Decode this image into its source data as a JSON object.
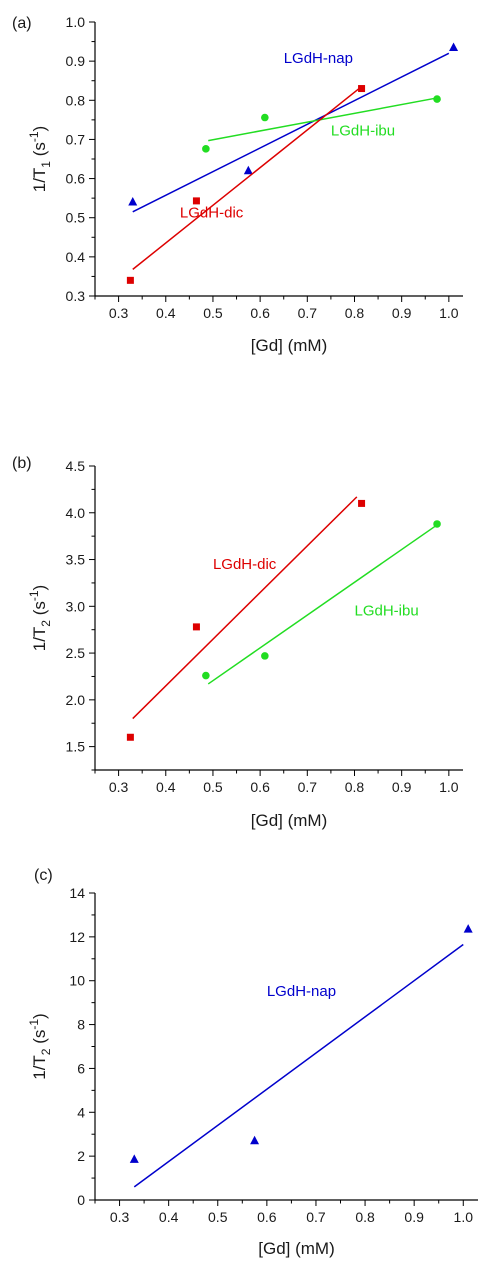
{
  "chart_data": [
    {
      "type": "scatter",
      "panel_label": "(a)",
      "xlabel": "[Gd] (mM)",
      "ylabel": {
        "base": "1/T",
        "sub": "1",
        "unit_open": " (s",
        "sup": "-1",
        "unit_close": ")"
      },
      "xlim": [
        0.25,
        1.03
      ],
      "ylim": [
        0.3,
        1.0
      ],
      "xticks": [
        "0.3",
        "0.4",
        "0.5",
        "0.6",
        "0.7",
        "0.8",
        "0.9",
        "1.0"
      ],
      "yticks": [
        "0.3",
        "0.4",
        "0.5",
        "0.6",
        "0.7",
        "0.8",
        "0.9",
        "1.0"
      ],
      "series": [
        {
          "name": "LGdH-nap",
          "color": "#0000cc",
          "marker": "triangle",
          "points": [
            [
              0.33,
              0.54
            ],
            [
              0.575,
              0.62
            ],
            [
              1.01,
              0.935
            ]
          ],
          "fit": [
            [
              0.33,
              0.515
            ],
            [
              1.0,
              0.92
            ]
          ],
          "label_at": [
            0.65,
            0.895
          ]
        },
        {
          "name": "LGdH-ibu",
          "color": "#22dd22",
          "marker": "circle",
          "points": [
            [
              0.485,
              0.676
            ],
            [
              0.61,
              0.756
            ],
            [
              0.975,
              0.803
            ]
          ],
          "fit": [
            [
              0.49,
              0.697
            ],
            [
              0.975,
              0.806
            ]
          ],
          "label_at": [
            0.75,
            0.71
          ]
        },
        {
          "name": "LGdH-dic",
          "color": "#dd0000",
          "marker": "square",
          "points": [
            [
              0.325,
              0.34
            ],
            [
              0.465,
              0.543
            ],
            [
              0.815,
              0.83
            ]
          ],
          "fit": [
            [
              0.33,
              0.368
            ],
            [
              0.815,
              0.835
            ]
          ],
          "label_at": [
            0.43,
            0.5
          ]
        }
      ]
    },
    {
      "type": "scatter",
      "panel_label": "(b)",
      "xlabel": "[Gd] (mM)",
      "ylabel": {
        "base": "1/T",
        "sub": "2",
        "unit_open": " (s",
        "sup": "-1",
        "unit_close": ")"
      },
      "xlim": [
        0.25,
        1.03
      ],
      "ylim": [
        1.25,
        4.5
      ],
      "xticks": [
        "0.3",
        "0.4",
        "0.5",
        "0.6",
        "0.7",
        "0.8",
        "0.9",
        "1.0"
      ],
      "yticks": [
        "1.5",
        "2.0",
        "2.5",
        "3.0",
        "3.5",
        "4.0",
        "4.5"
      ],
      "series": [
        {
          "name": "LGdH-dic",
          "color": "#dd0000",
          "marker": "square",
          "points": [
            [
              0.325,
              1.6
            ],
            [
              0.465,
              2.78
            ],
            [
              0.815,
              4.1
            ]
          ],
          "fit": [
            [
              0.33,
              1.8
            ],
            [
              0.805,
              4.17
            ]
          ],
          "label_at": [
            0.5,
            3.4
          ]
        },
        {
          "name": "LGdH-ibu",
          "color": "#22dd22",
          "marker": "circle",
          "points": [
            [
              0.485,
              2.26
            ],
            [
              0.61,
              2.47
            ],
            [
              0.975,
              3.88
            ]
          ],
          "fit": [
            [
              0.49,
              2.17
            ],
            [
              0.975,
              3.87
            ]
          ],
          "label_at": [
            0.8,
            2.9
          ]
        }
      ]
    },
    {
      "type": "scatter",
      "panel_label": "(c)",
      "xlabel": "[Gd] (mM)",
      "ylabel": {
        "base": "1/T",
        "sub": "2",
        "unit_open": " (s",
        "sup": "-1",
        "unit_close": ")"
      },
      "xlim": [
        0.25,
        1.03
      ],
      "ylim": [
        0,
        14
      ],
      "xticks": [
        "0.3",
        "0.4",
        "0.5",
        "0.6",
        "0.7",
        "0.8",
        "0.9",
        "1.0"
      ],
      "yticks": [
        "0",
        "2",
        "4",
        "6",
        "8",
        "10",
        "12",
        "14"
      ],
      "series": [
        {
          "name": "LGdH-nap",
          "color": "#0000cc",
          "marker": "triangle",
          "points": [
            [
              0.33,
              1.85
            ],
            [
              0.575,
              2.7
            ],
            [
              1.01,
              12.35
            ]
          ],
          "fit": [
            [
              0.33,
              0.6
            ],
            [
              1.0,
              11.65
            ]
          ],
          "label_at": [
            0.6,
            9.3
          ]
        }
      ]
    }
  ]
}
